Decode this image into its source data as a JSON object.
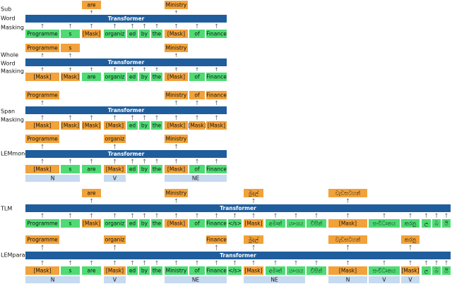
{
  "sections": [
    {
      "label_lines": [
        "Sub",
        "Word",
        "Masking"
      ],
      "top": [
        null,
        null,
        "are",
        null,
        null,
        null,
        null,
        "Ministry",
        null,
        null
      ],
      "transformer": "Transformer",
      "bottom": [
        "Programme",
        "s",
        "[Mask]",
        "organiz",
        "ed",
        "by",
        "the",
        "[Mask]",
        "of",
        "Finance"
      ],
      "tags": []
    },
    {
      "label_lines": [
        "Whole",
        "Word",
        "Masking"
      ],
      "top": [
        "Programme",
        "s",
        null,
        null,
        null,
        null,
        null,
        "Ministry",
        null,
        null
      ],
      "transformer": "Transformer",
      "bottom": [
        "[Mask]",
        "[Mask]",
        "are",
        "organiz",
        "ed",
        "by",
        "the",
        "[Mask]",
        "of",
        "Finance"
      ],
      "tags": []
    },
    {
      "label_lines": [
        "Span",
        "Masking"
      ],
      "top": [
        "Programme",
        null,
        null,
        null,
        null,
        null,
        null,
        "Ministry",
        "of",
        "Finance"
      ],
      "transformer": "Transformer",
      "bottom": [
        "[Mask]",
        "[Mask]",
        "[Mask]",
        "[Mask]",
        "ed",
        "by",
        "the",
        "[Mask]",
        "[Mask]",
        "[Mask]"
      ],
      "tags": []
    },
    {
      "label_lines": [
        "LEMmono"
      ],
      "top": [
        "Programme",
        null,
        null,
        "organiz",
        null,
        null,
        null,
        "Ministry",
        null,
        null
      ],
      "transformer": "Transformer",
      "bottom": [
        "[Mask]",
        "s",
        "are",
        "[Mask]",
        "ed",
        "by",
        "the",
        "[Mask]",
        "of",
        "Finance"
      ],
      "tags": [
        {
          "text": "N",
          "first": 0,
          "last": 1
        },
        {
          "text": "V",
          "first": 3,
          "last": 3
        },
        {
          "text": "NE",
          "first": 7,
          "last": 9
        }
      ]
    },
    {
      "label_lines": [
        "TLM"
      ],
      "top": [
        null,
        null,
        "are",
        null,
        null,
        null,
        null,
        "Ministry",
        null,
        null,
        null,
        "මුදල්",
        null,
        null,
        null,
        "වැඩසටහන්",
        null,
        null,
        null,
        null,
        null
      ],
      "transformer": "Transformer",
      "bottom": [
        "Programme",
        "s",
        "[Mask]",
        "organiz",
        "ed",
        "by",
        "the",
        "[Mask]",
        "of",
        "Finance",
        "</s>",
        "[Mask]",
        "අමාත්",
        "යාංශය",
        "විසින්",
        "[Mask]",
        "සංවිධානය",
        "කරනු",
        "ල",
        "බ",
        "යි"
      ],
      "tags": []
    },
    {
      "label_lines": [
        "LEMpara"
      ],
      "top": [
        "Programme",
        null,
        null,
        "organiz",
        null,
        null,
        null,
        null,
        null,
        "Finance",
        null,
        "මුදල්",
        null,
        null,
        null,
        "වැඩසටහන්",
        null,
        "කරනු",
        null,
        null,
        null
      ],
      "transformer": "Transformer",
      "bottom": [
        "[Mask]",
        "s",
        "are",
        "[Mask]",
        "ed",
        "by",
        "the",
        "Ministry",
        "of",
        "Finance",
        "</s>",
        "[Mask]",
        "අමාත්",
        "යාංශය",
        "විසින්",
        "[Mask]",
        "සංවිධානය",
        "[Mask]",
        "ල",
        "බ",
        "යි"
      ],
      "tags": [
        {
          "text": "N",
          "first": 0,
          "last": 1
        },
        {
          "text": "V",
          "first": 3,
          "last": 3
        },
        {
          "text": "NE",
          "first": 7,
          "last": 9
        },
        {
          "text": "NE",
          "first": 11,
          "last": 13
        },
        {
          "text": "N",
          "first": 15,
          "last": 15
        },
        {
          "text": "V",
          "first": 16,
          "last": 16
        },
        {
          "text": "V",
          "first": 17,
          "last": 17
        }
      ]
    }
  ]
}
